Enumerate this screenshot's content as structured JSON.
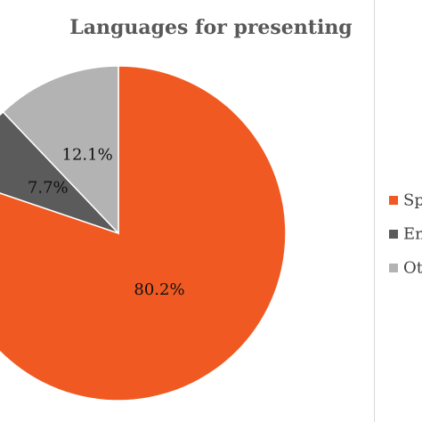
{
  "chart_data": {
    "type": "pie",
    "title": "Languages for presenting",
    "categories": [
      "Sp",
      "En",
      "Ot"
    ],
    "values": [
      80.2,
      7.7,
      12.1
    ],
    "data_labels": [
      "80.2%",
      "7.7%",
      "12.1%"
    ],
    "colors": [
      "#f05a22",
      "#5b5b5b",
      "#b3b3b3"
    ],
    "legend_position": "right"
  }
}
